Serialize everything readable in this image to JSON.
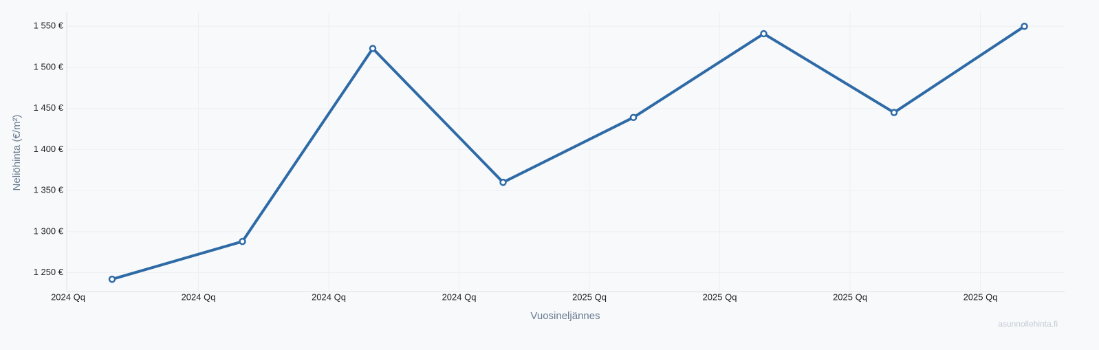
{
  "chart_data": {
    "type": "line",
    "categories": [
      "2024 Qq",
      "2024 Qq",
      "2024 Qq",
      "2024 Qq",
      "2025 Qq",
      "2025 Qq",
      "2025 Qq",
      "2025 Qq"
    ],
    "series": [
      {
        "color": "#2e6aa6",
        "values": [
          1242,
          1288,
          1523,
          1360,
          1439,
          1541,
          1445,
          1550
        ]
      }
    ],
    "ylim": [
      1227,
      1567
    ],
    "yticks": [
      {
        "value": 1250,
        "label": "1 250 €"
      },
      {
        "value": 1300,
        "label": "1 300 €"
      },
      {
        "value": 1350,
        "label": "1 350 €"
      },
      {
        "value": 1400,
        "label": "1 400 €"
      },
      {
        "value": 1450,
        "label": "1 450 €"
      },
      {
        "value": 1500,
        "label": "1 500 €"
      },
      {
        "value": 1550,
        "label": "1 550 €"
      }
    ],
    "y_label": "Neliöhinta (€/m²)",
    "x_label": "Vuosineljännes",
    "watermark": "asunnollehinta.fi",
    "grid": true
  }
}
